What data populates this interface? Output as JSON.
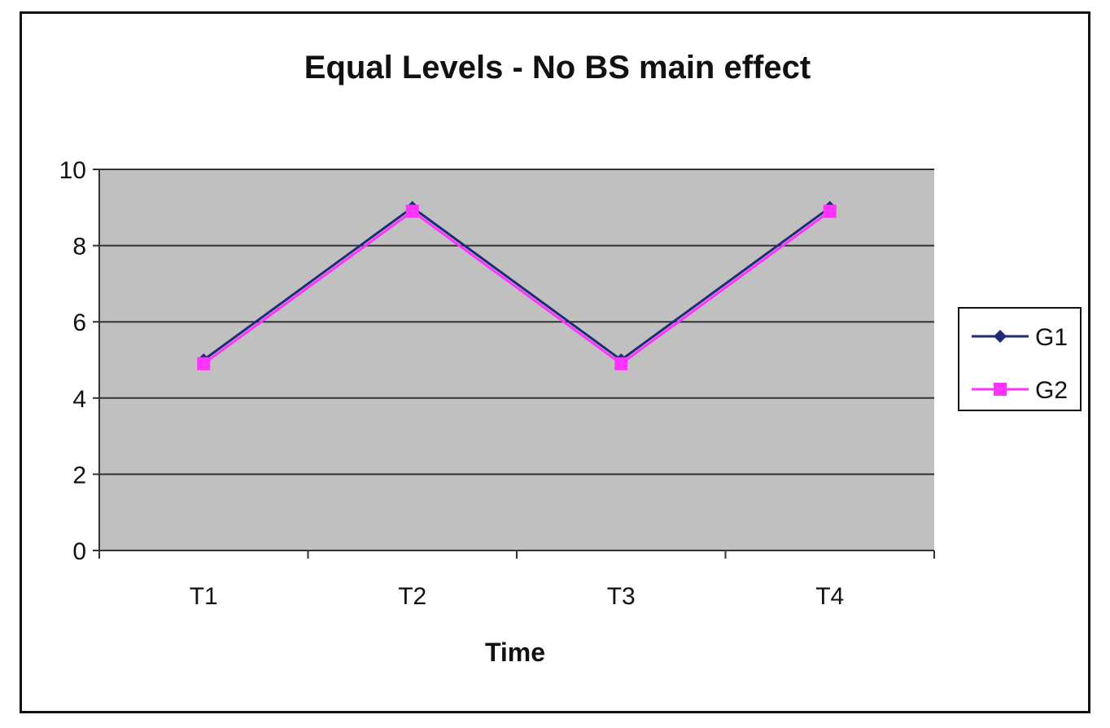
{
  "chart_data": {
    "type": "line",
    "title": "Equal Levels - No BS main effect",
    "xlabel": "Time",
    "ylabel": "",
    "categories": [
      "T1",
      "T2",
      "T3",
      "T4"
    ],
    "ylim": [
      0,
      10
    ],
    "yticks": [
      0,
      2,
      4,
      6,
      8,
      10
    ],
    "grid": true,
    "legend_position": "right",
    "plot_background": "#c0c0c0",
    "series": [
      {
        "name": "G1",
        "values": [
          5,
          9,
          5,
          9
        ],
        "color": "#1f2a7a",
        "marker": "diamond"
      },
      {
        "name": "G2",
        "values": [
          4.9,
          8.9,
          4.9,
          8.9
        ],
        "color": "#ff33ff",
        "marker": "square"
      }
    ]
  }
}
